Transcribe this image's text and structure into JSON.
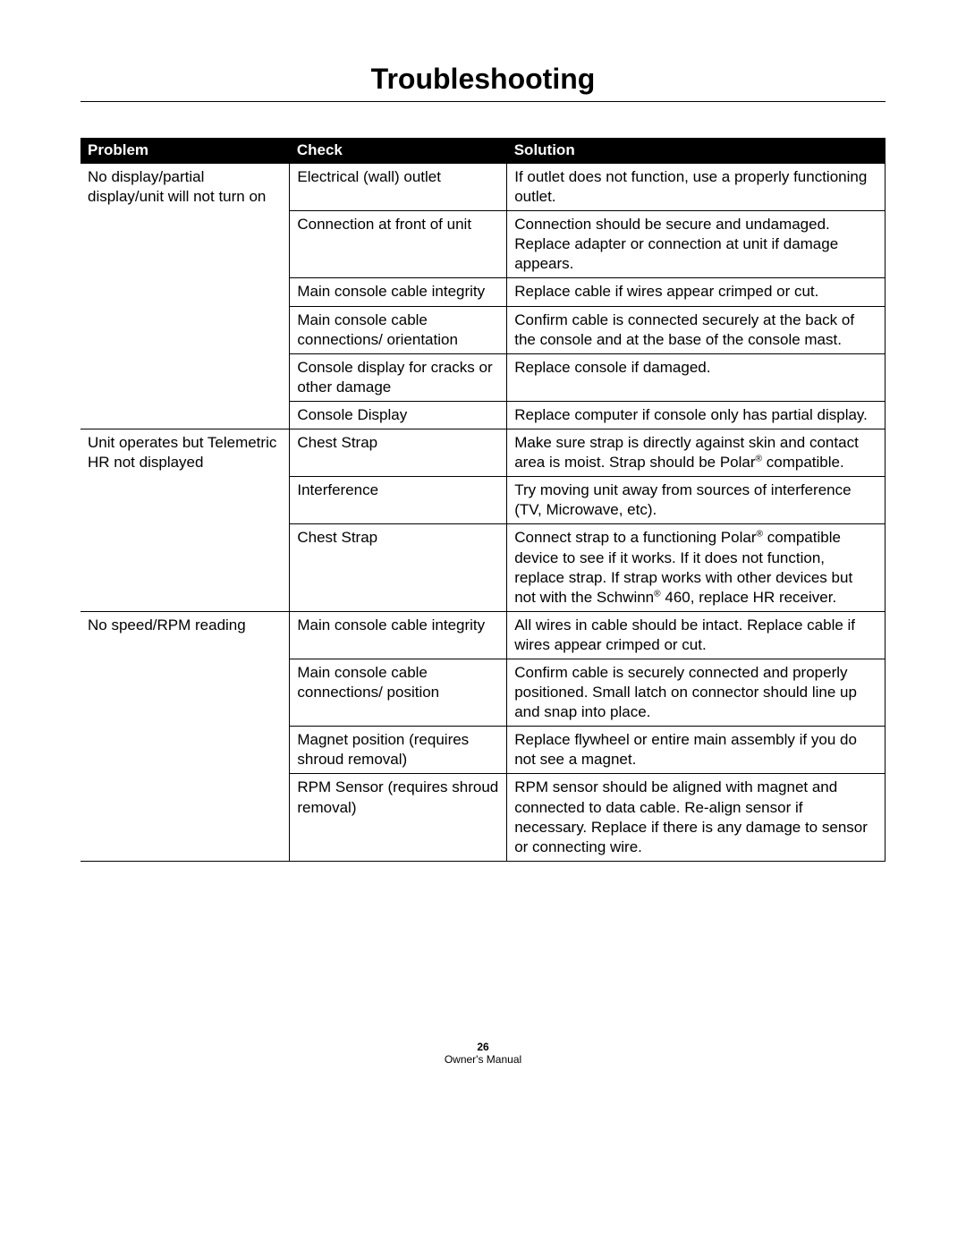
{
  "title": "Troubleshooting",
  "columns": [
    "Problem",
    "Check",
    "Solution"
  ],
  "groups": [
    {
      "problem": "No display/partial display/unit will not turn on",
      "items": [
        {
          "check": "Electrical (wall) outlet",
          "solution": "If outlet does not function, use a properly functioning outlet."
        },
        {
          "check": "Connection at front of unit",
          "solution": "Connection should be secure and undamaged. Replace adapter or connection at unit if damage appears."
        },
        {
          "check": "Main console cable integrity",
          "solution": "Replace cable if wires appear crimped or cut."
        },
        {
          "check": "Main console cable connections/ orientation",
          "solution": "Confirm cable is connected securely at the back of the console and at the base of the console mast."
        },
        {
          "check": "Console display for cracks or other damage",
          "solution": "Replace console if damaged."
        },
        {
          "check": "Console Display",
          "solution": "Replace computer  if console only has partial display."
        }
      ]
    },
    {
      "problem": "Unit operates but Telemetric HR not displayed",
      "items": [
        {
          "check": "Chest Strap",
          "solution": "Make sure strap is directly against skin and contact area is moist. Strap should be Polar® compatible."
        },
        {
          "check": "Interference",
          "solution": "Try moving unit away from sources of interference (TV, Microwave, etc)."
        },
        {
          "check": "Chest Strap",
          "solution": "Connect strap to a functioning Polar® compatible device to see if it works. If it does not function, replace strap. If strap works with other devices but not with the Schwinn® 460, replace HR receiver."
        }
      ]
    },
    {
      "problem": "No speed/RPM reading",
      "items": [
        {
          "check": "Main console cable integrity",
          "solution": "All wires in cable should be intact. Replace cable if wires appear crimped or cut."
        },
        {
          "check": "Main console cable connections/ position",
          "solution": "Confirm cable is securely connected and properly positioned. Small latch on connector should line up and snap into place."
        },
        {
          "check": "Magnet position (requires shroud removal)",
          "solution": "Replace flywheel or entire main assembly if you do not see a magnet."
        },
        {
          "check": "RPM Sensor (requires shroud removal)",
          "solution": "RPM sensor should be aligned with magnet and connected to data cable. Re-align sensor if necessary. Replace if there is any damage to sensor or connecting wire."
        }
      ]
    }
  ],
  "footer": {
    "page": "26",
    "label": "Owner's Manual"
  }
}
